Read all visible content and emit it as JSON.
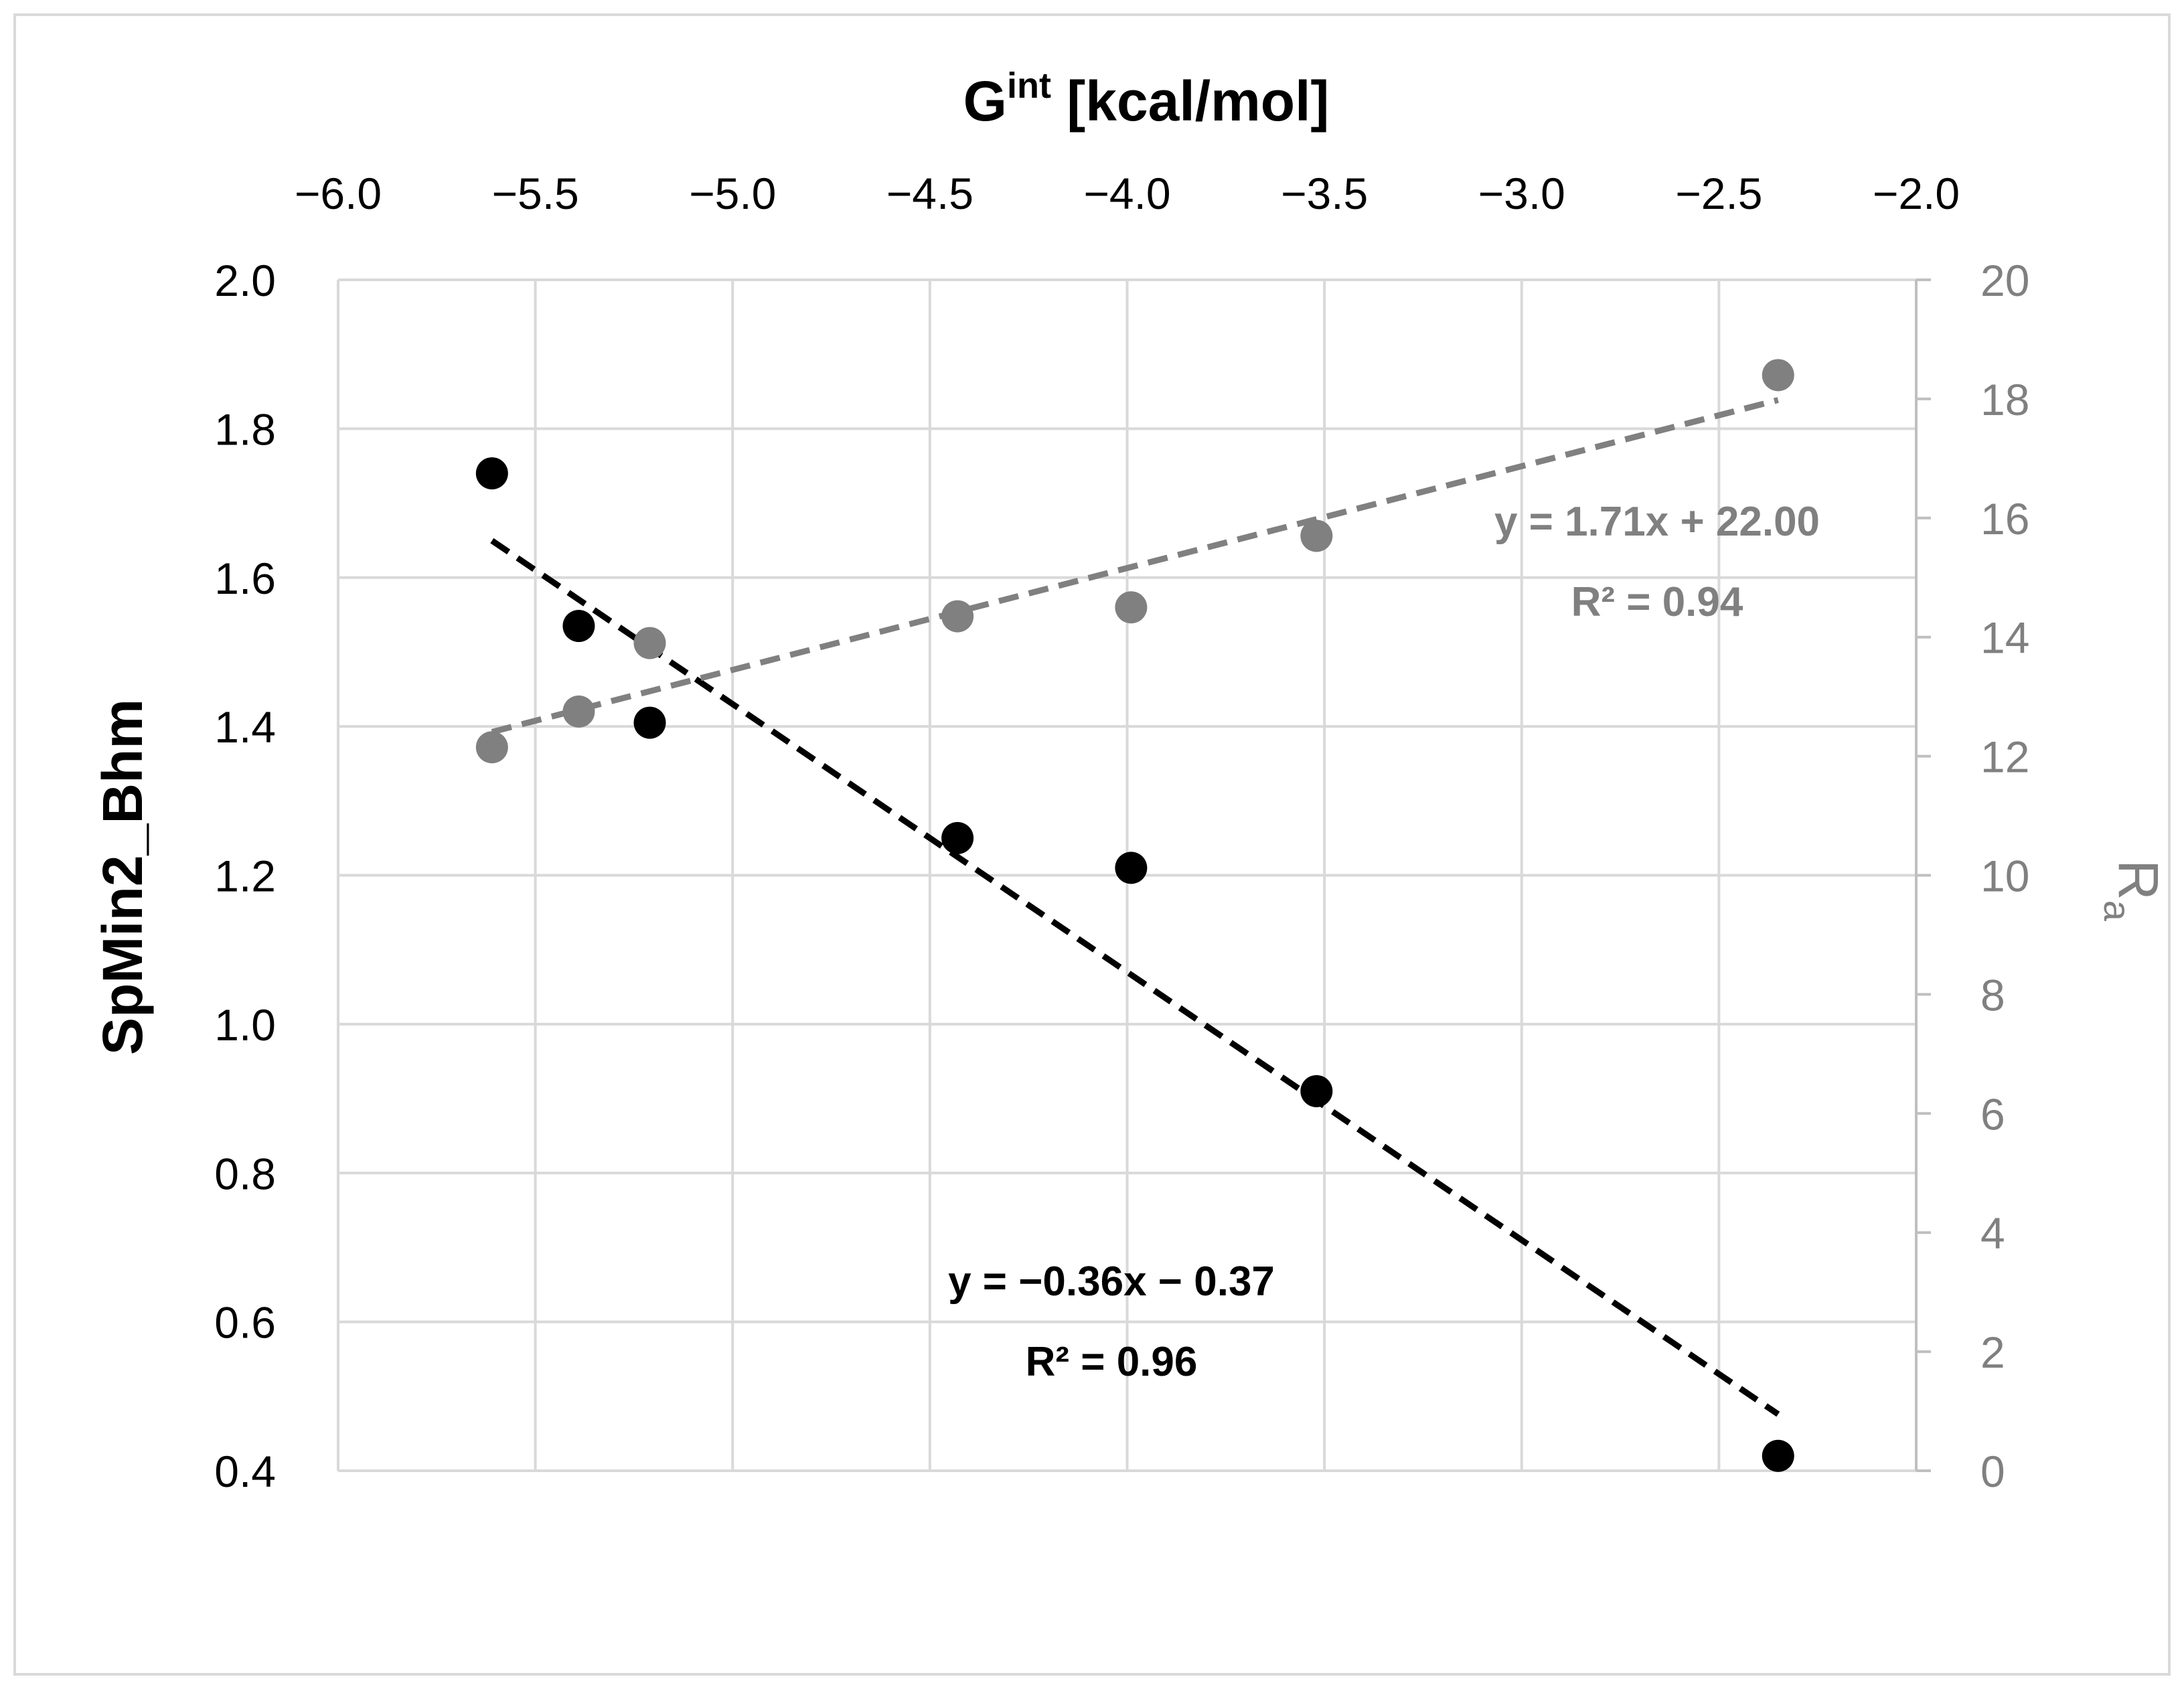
{
  "chart_data": {
    "type": "scatter",
    "x_axis": {
      "title_main": "G",
      "title_sup": "int",
      "title_unit": " [kcal/mol]",
      "position": "top",
      "range": [
        -6.0,
        -2.0
      ],
      "ticks": [
        "−6.0",
        "−5.5",
        "−5.0",
        "−4.5",
        "−4.0",
        "−3.5",
        "−3.0",
        "−2.5",
        "−2.0"
      ]
    },
    "y_axis_left": {
      "title": "SpMin2_Bhm",
      "range": [
        0.4,
        2.0
      ],
      "ticks": [
        "2.0",
        "1.8",
        "1.6",
        "1.4",
        "1.2",
        "1.0",
        "0.8",
        "0.6",
        "0.4"
      ]
    },
    "y_axis_right": {
      "title_main": "R",
      "title_sub": "a",
      "range": [
        0,
        20
      ],
      "ticks": [
        "20",
        "18",
        "16",
        "14",
        "12",
        "10",
        "8",
        "6",
        "4",
        "2",
        "0"
      ]
    },
    "grid": true,
    "series": [
      {
        "name": "SpMin2_Bhm",
        "axis": "left",
        "color": "#000000",
        "points": [
          {
            "x": -5.61,
            "y": 1.74
          },
          {
            "x": -5.39,
            "y": 1.535
          },
          {
            "x": -5.21,
            "y": 1.405
          },
          {
            "x": -4.43,
            "y": 1.25
          },
          {
            "x": -3.99,
            "y": 1.21
          },
          {
            "x": -3.52,
            "y": 0.91
          },
          {
            "x": -2.35,
            "y": 0.42
          }
        ],
        "trendline": {
          "slope": -0.36,
          "intercept": -0.37,
          "x_range": [
            -5.61,
            -2.35
          ]
        },
        "equation": "y = −0.36x − 0.37",
        "r2": "R² = 0.96"
      },
      {
        "name": "Ra",
        "axis": "right",
        "color": "#808080",
        "points": [
          {
            "x": -5.61,
            "y": 12.15
          },
          {
            "x": -5.39,
            "y": 12.75
          },
          {
            "x": -5.21,
            "y": 13.9
          },
          {
            "x": -4.43,
            "y": 14.35
          },
          {
            "x": -3.99,
            "y": 14.5
          },
          {
            "x": -3.52,
            "y": 15.7
          },
          {
            "x": -2.35,
            "y": 18.4
          }
        ],
        "trendline": {
          "slope": 1.71,
          "intercept": 22.0,
          "x_range": [
            -5.61,
            -2.35
          ]
        },
        "equation": "y = 1.71x + 22.00",
        "r2": "R² = 0.94"
      }
    ]
  }
}
